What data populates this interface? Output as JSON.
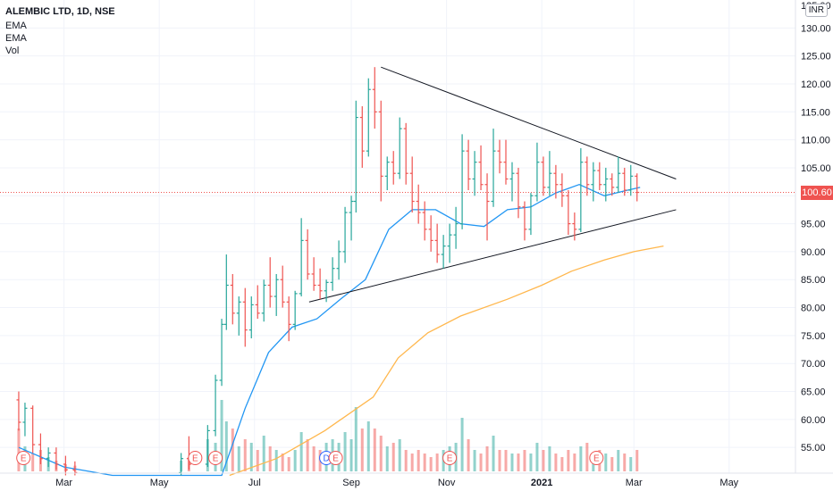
{
  "header": {
    "title": "ALEMBIC LTD, 1D, NSE",
    "indicators": [
      "EMA",
      "EMA",
      "Vol"
    ]
  },
  "currency_badge": "INR",
  "last_price_label": "100.60",
  "colors": {
    "up": "#26a69a",
    "down": "#ef5350",
    "ema_fast": "#2196f3",
    "ema_slow": "#ffb74d",
    "trendline": "#131722",
    "price_line": "#ef5350",
    "event_badge": "#ef5350",
    "dividend_badge": "#2962ff"
  },
  "event_markers": [
    {
      "label": "E",
      "type": "earnings",
      "date": "2020-02-04"
    },
    {
      "label": "E",
      "type": "earnings",
      "date": "2020-05-24"
    },
    {
      "label": "E",
      "type": "earnings",
      "date": "2020-06-06"
    },
    {
      "label": "D",
      "type": "dividend",
      "date": "2020-08-16"
    },
    {
      "label": "E",
      "type": "earnings",
      "date": "2020-08-22"
    },
    {
      "label": "E",
      "type": "earnings",
      "date": "2020-11-03"
    },
    {
      "label": "E",
      "type": "earnings",
      "date": "2021-02-05"
    }
  ],
  "chart_data": {
    "type": "candlestick",
    "title": "ALEMBIC LTD, 1D, NSE",
    "x_ticks": [
      "Mar",
      "May",
      "Jul",
      "Sep",
      "Nov",
      "2021",
      "Mar",
      "May"
    ],
    "x_tick_bold": [
      "2021"
    ],
    "y_ticks": [
      55,
      60,
      65,
      70,
      75,
      80,
      85,
      90,
      95,
      100,
      105,
      110,
      115,
      120,
      125,
      130
    ],
    "y_top_partial_label": "135.00",
    "ylim": [
      50,
      135
    ],
    "last_price": 100.6,
    "series": [
      {
        "name": "EMA",
        "kind": "line",
        "path_anchors": [
          [
            "2020-02-01",
            55.0
          ],
          [
            "2020-03-01",
            51.5
          ],
          [
            "2020-04-01",
            50.0
          ],
          [
            "2020-06-10",
            50.0
          ],
          [
            "2020-06-25",
            62.0
          ],
          [
            "2020-07-10",
            72.0
          ],
          [
            "2020-07-25",
            76.5
          ],
          [
            "2020-08-10",
            78.0
          ],
          [
            "2020-08-25",
            81.5
          ],
          [
            "2020-09-10",
            85.0
          ],
          [
            "2020-09-25",
            94.0
          ],
          [
            "2020-10-10",
            97.5
          ],
          [
            "2020-10-25",
            97.5
          ],
          [
            "2020-11-10",
            95.0
          ],
          [
            "2020-11-25",
            94.5
          ],
          [
            "2020-12-10",
            97.5
          ],
          [
            "2020-12-25",
            98.0
          ],
          [
            "2021-01-10",
            100.5
          ],
          [
            "2021-01-25",
            102.0
          ],
          [
            "2021-02-10",
            100.0
          ],
          [
            "2021-02-25",
            101.0
          ],
          [
            "2021-03-05",
            101.5
          ]
        ]
      },
      {
        "name": "EMA",
        "kind": "line",
        "path_anchors": [
          [
            "2020-06-15",
            50.0
          ],
          [
            "2020-07-15",
            53.0
          ],
          [
            "2020-08-15",
            58.0
          ],
          [
            "2020-09-15",
            64.0
          ],
          [
            "2020-10-01",
            71.0
          ],
          [
            "2020-10-20",
            75.5
          ],
          [
            "2020-11-10",
            78.5
          ],
          [
            "2020-12-10",
            81.5
          ],
          [
            "2021-01-01",
            84.0
          ],
          [
            "2021-01-20",
            86.5
          ],
          [
            "2021-02-10",
            88.5
          ],
          [
            "2021-03-01",
            90.0
          ],
          [
            "2021-03-20",
            91.0
          ]
        ]
      },
      {
        "name": "Vol",
        "kind": "histogram"
      }
    ],
    "trendlines": [
      {
        "from": [
          "2020-09-20",
          123.0
        ],
        "to": [
          "2021-03-28",
          103.0
        ]
      },
      {
        "from": [
          "2020-08-05",
          81.0
        ],
        "to": [
          "2021-03-28",
          97.5
        ]
      }
    ],
    "candles_ohlc": [
      [
        "2020-02-01",
        63.5,
        65.0,
        58.0,
        59.5
      ],
      [
        "2020-02-05",
        59.5,
        63.0,
        57.0,
        62.0
      ],
      [
        "2020-02-10",
        62.0,
        62.5,
        54.0,
        55.5
      ],
      [
        "2020-02-15",
        55.5,
        57.5,
        52.0,
        53.0
      ],
      [
        "2020-02-20",
        53.0,
        55.0,
        51.5,
        54.0
      ],
      [
        "2020-02-25",
        54.0,
        55.0,
        51.0,
        52.0
      ],
      [
        "2020-03-02",
        52.0,
        53.5,
        50.0,
        51.0
      ],
      [
        "2020-03-08",
        51.0,
        52.5,
        50.0,
        50.5
      ],
      [
        "2020-05-15",
        50.5,
        54.0,
        50.0,
        53.0
      ],
      [
        "2020-05-20",
        53.0,
        57.0,
        51.0,
        52.0
      ],
      [
        "2020-06-01",
        52.0,
        59.0,
        51.5,
        58.0
      ],
      [
        "2020-06-06",
        58.0,
        68.0,
        57.0,
        67.0
      ],
      [
        "2020-06-10",
        67.0,
        78.0,
        66.0,
        77.0
      ],
      [
        "2020-06-13",
        77.0,
        89.5,
        76.0,
        84.0
      ],
      [
        "2020-06-17",
        84.0,
        86.0,
        77.0,
        79.0
      ],
      [
        "2020-06-21",
        79.0,
        82.0,
        75.0,
        81.0
      ],
      [
        "2020-06-25",
        81.0,
        83.5,
        73.0,
        76.0
      ],
      [
        "2020-06-29",
        76.0,
        82.0,
        74.5,
        80.5
      ],
      [
        "2020-07-03",
        80.5,
        84.0,
        78.0,
        79.0
      ],
      [
        "2020-07-07",
        79.0,
        85.0,
        77.5,
        84.0
      ],
      [
        "2020-07-11",
        84.0,
        89.0,
        80.0,
        82.0
      ],
      [
        "2020-07-15",
        82.0,
        86.0,
        78.5,
        85.0
      ],
      [
        "2020-07-19",
        85.0,
        87.5,
        80.0,
        81.0
      ],
      [
        "2020-07-23",
        81.0,
        82.0,
        74.0,
        77.0
      ],
      [
        "2020-07-27",
        77.0,
        83.0,
        76.0,
        82.5
      ],
      [
        "2020-07-31",
        82.5,
        96.0,
        82.0,
        92.0
      ],
      [
        "2020-08-04",
        92.0,
        94.0,
        85.0,
        86.0
      ],
      [
        "2020-08-08",
        86.0,
        89.0,
        83.0,
        84.0
      ],
      [
        "2020-08-12",
        84.0,
        87.0,
        81.5,
        83.0
      ],
      [
        "2020-08-16",
        83.0,
        85.0,
        81.0,
        84.5
      ],
      [
        "2020-08-20",
        84.5,
        89.0,
        83.0,
        87.0
      ],
      [
        "2020-08-24",
        87.0,
        92.0,
        85.0,
        90.0
      ],
      [
        "2020-08-28",
        90.0,
        98.0,
        88.0,
        97.0
      ],
      [
        "2020-09-01",
        97.0,
        100.0,
        92.0,
        99.0
      ],
      [
        "2020-09-04",
        99.0,
        117.0,
        97.0,
        114.0
      ],
      [
        "2020-09-08",
        114.0,
        116.0,
        105.0,
        108.0
      ],
      [
        "2020-09-12",
        108.0,
        121.0,
        107.0,
        119.0
      ],
      [
        "2020-09-16",
        119.0,
        123.0,
        112.0,
        115.0
      ],
      [
        "2020-09-20",
        115.0,
        117.0,
        99.0,
        103.5
      ],
      [
        "2020-09-24",
        103.5,
        107.0,
        101.0,
        106.0
      ],
      [
        "2020-09-28",
        106.0,
        108.0,
        102.0,
        104.0
      ],
      [
        "2020-10-02",
        104.0,
        114.0,
        103.0,
        112.0
      ],
      [
        "2020-10-06",
        112.0,
        113.0,
        102.0,
        104.0
      ],
      [
        "2020-10-10",
        104.0,
        107.0,
        97.0,
        99.0
      ],
      [
        "2020-10-14",
        99.0,
        102.0,
        95.0,
        97.0
      ],
      [
        "2020-10-18",
        97.0,
        99.0,
        92.0,
        94.0
      ],
      [
        "2020-10-22",
        94.0,
        96.5,
        90.0,
        92.0
      ],
      [
        "2020-10-26",
        92.0,
        95.0,
        88.0,
        89.5
      ],
      [
        "2020-10-30",
        89.5,
        93.0,
        87.0,
        91.0
      ],
      [
        "2020-11-03",
        91.0,
        95.0,
        88.0,
        93.0
      ],
      [
        "2020-11-07",
        93.0,
        98.0,
        90.5,
        95.0
      ],
      [
        "2020-11-11",
        95.0,
        111.0,
        94.0,
        108.0
      ],
      [
        "2020-11-15",
        108.0,
        110.0,
        101.0,
        103.0
      ],
      [
        "2020-11-19",
        103.0,
        108.0,
        100.0,
        106.0
      ],
      [
        "2020-11-23",
        106.0,
        109.0,
        101.0,
        102.0
      ],
      [
        "2020-11-27",
        102.0,
        104.0,
        92.0,
        99.0
      ],
      [
        "2020-12-01",
        99.0,
        112.0,
        98.0,
        108.0
      ],
      [
        "2020-12-05",
        108.0,
        110.0,
        104.0,
        106.0
      ],
      [
        "2020-12-09",
        106.0,
        110.0,
        102.0,
        103.0
      ],
      [
        "2020-12-13",
        103.0,
        106.0,
        99.0,
        104.0
      ],
      [
        "2020-12-17",
        104.0,
        105.0,
        96.0,
        98.0
      ],
      [
        "2020-12-21",
        98.0,
        99.0,
        92.0,
        94.0
      ],
      [
        "2020-12-25",
        94.0,
        100.5,
        93.0,
        100.0
      ],
      [
        "2020-12-29",
        100.0,
        109.5,
        99.0,
        106.0
      ],
      [
        "2021-01-02",
        106.0,
        107.0,
        100.0,
        101.5
      ],
      [
        "2021-01-06",
        101.5,
        108.0,
        100.0,
        104.0
      ],
      [
        "2021-01-10",
        104.0,
        105.5,
        99.5,
        102.0
      ],
      [
        "2021-01-14",
        102.0,
        104.0,
        98.0,
        100.0
      ],
      [
        "2021-01-18",
        100.0,
        101.0,
        93.0,
        95.0
      ],
      [
        "2021-01-22",
        95.0,
        97.0,
        92.0,
        94.0
      ],
      [
        "2021-01-26",
        94.0,
        108.5,
        93.5,
        106.0
      ],
      [
        "2021-01-30",
        106.0,
        107.0,
        100.0,
        102.0
      ],
      [
        "2021-02-03",
        102.0,
        106.0,
        99.0,
        104.5
      ],
      [
        "2021-02-07",
        104.5,
        106.0,
        101.0,
        102.0
      ],
      [
        "2021-02-11",
        102.0,
        105.0,
        99.0,
        103.0
      ],
      [
        "2021-02-15",
        103.0,
        104.0,
        100.0,
        101.5
      ],
      [
        "2021-02-19",
        101.5,
        107.0,
        100.5,
        104.0
      ],
      [
        "2021-02-23",
        104.0,
        105.0,
        100.0,
        101.0
      ],
      [
        "2021-02-27",
        101.0,
        105.5,
        100.0,
        103.5
      ],
      [
        "2021-03-03",
        103.5,
        104.0,
        99.0,
        100.6
      ]
    ],
    "volume_relative": [
      0.6,
      0.35,
      0.25,
      0.3,
      0.2,
      0.15,
      0.1,
      0.08,
      0.15,
      0.2,
      0.45,
      0.4,
      1.0,
      0.7,
      0.6,
      0.35,
      0.45,
      0.4,
      0.3,
      0.5,
      0.35,
      0.3,
      0.25,
      0.2,
      0.3,
      0.55,
      0.45,
      0.35,
      0.3,
      0.4,
      0.45,
      0.4,
      0.55,
      0.45,
      0.9,
      0.6,
      0.7,
      0.6,
      0.5,
      0.35,
      0.4,
      0.45,
      0.3,
      0.25,
      0.3,
      0.25,
      0.2,
      0.25,
      0.3,
      0.35,
      0.4,
      0.75,
      0.45,
      0.3,
      0.25,
      0.35,
      0.5,
      0.3,
      0.3,
      0.25,
      0.25,
      0.3,
      0.25,
      0.4,
      0.3,
      0.35,
      0.25,
      0.2,
      0.3,
      0.25,
      0.35,
      0.4,
      0.25,
      0.3,
      0.25,
      0.2,
      0.3,
      0.25,
      0.2,
      0.3
    ]
  }
}
